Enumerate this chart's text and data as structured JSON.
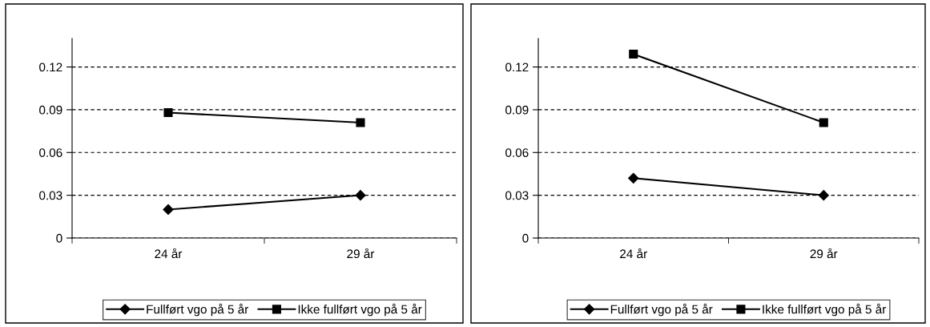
{
  "chart_data": [
    {
      "type": "line",
      "categories": [
        "24 år",
        "29 år"
      ],
      "ylim": [
        0,
        0.14
      ],
      "yticks": [
        0,
        0.03,
        0.06,
        0.09,
        0.12
      ],
      "grid": "y",
      "legend": "bottom",
      "line_style": "solid",
      "series": [
        {
          "name": "Fullført vgo på 5 år",
          "color": "#000000",
          "marker": "diamond",
          "values": [
            0.02,
            0.03
          ]
        },
        {
          "name": "Ikke fullført vgo på 5 år",
          "color": "#000000",
          "marker": "square",
          "values": [
            0.088,
            0.081
          ]
        }
      ]
    },
    {
      "type": "line",
      "categories": [
        "24 år",
        "29 år"
      ],
      "ylim": [
        0,
        0.14
      ],
      "yticks": [
        0,
        0.03,
        0.06,
        0.09,
        0.12
      ],
      "grid": "y",
      "legend": "bottom",
      "line_style": "solid",
      "series": [
        {
          "name": "Fullført vgo på 5 år",
          "color": "#000000",
          "marker": "diamond",
          "values": [
            0.042,
            0.03
          ]
        },
        {
          "name": "Ikke fullført vgo på 5 år",
          "color": "#000000",
          "marker": "square",
          "values": [
            0.129,
            0.081
          ]
        }
      ]
    }
  ]
}
